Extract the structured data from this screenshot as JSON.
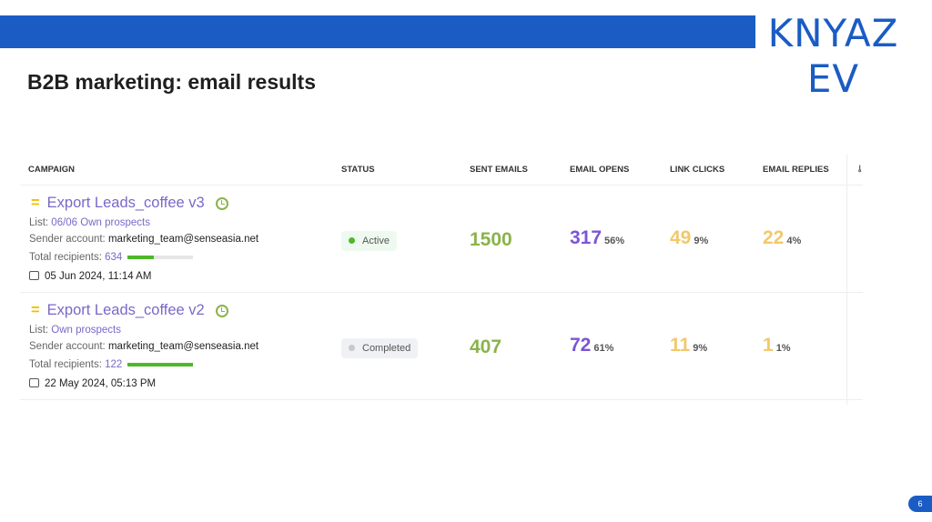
{
  "logo": {
    "line1": "KNYAZ",
    "line2": "EV"
  },
  "title": "B2B marketing: email results",
  "headers": [
    "CAMPAIGN",
    "STATUS",
    "SENT EMAILS",
    "EMAIL OPENS",
    "LINK CLICKS",
    "EMAIL REPLIES"
  ],
  "settings_icon": "column-settings-icon",
  "colors": {
    "brand": "#1a5cc4",
    "sent": "#8ab34a",
    "opens": "#7b55d6",
    "clicks": "#f2c86a",
    "active": "#4cb82a"
  },
  "rows": [
    {
      "name": "Export Leads_coffee v3",
      "list_label": "List:",
      "list": "06/06 Own prospects",
      "sender_label": "Sender account:",
      "sender": "marketing_team@senseasia.net",
      "recipients_label": "Total recipients:",
      "recipients": "634",
      "progress": 0.4,
      "date": "05 Jun 2024, 11:14 AM",
      "status": "Active",
      "sent": "1500",
      "opens": "317",
      "opens_pct": "56%",
      "clicks": "49",
      "clicks_pct": "9%",
      "replies": "22",
      "replies_pct": "4%"
    },
    {
      "name": "Export Leads_coffee v2",
      "list_label": "List:",
      "list": "Own prospects",
      "sender_label": "Sender account:",
      "sender": "marketing_team@senseasia.net",
      "recipients_label": "Total recipients:",
      "recipients": "122",
      "progress": 1.0,
      "date": "22 May 2024, 05:13 PM",
      "status": "Completed",
      "sent": "407",
      "opens": "72",
      "opens_pct": "61%",
      "clicks": "11",
      "clicks_pct": "9%",
      "replies": "1",
      "replies_pct": "1%"
    }
  ],
  "page_number": "6"
}
